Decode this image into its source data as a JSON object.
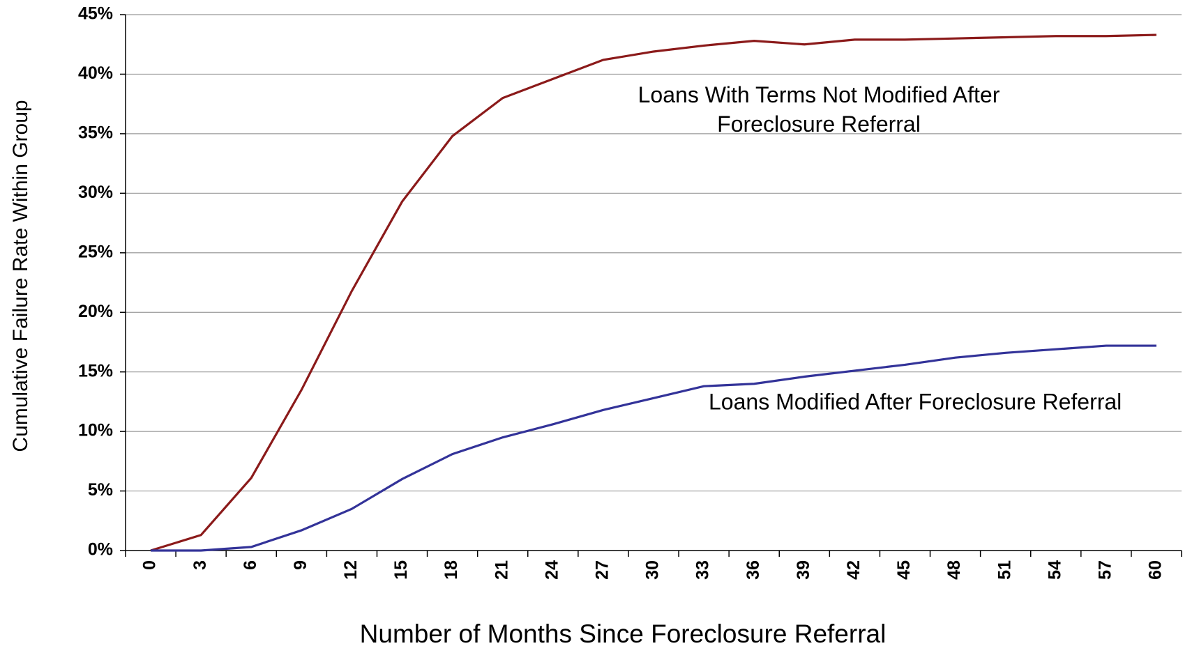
{
  "chart_data": {
    "type": "line",
    "xlabel": "Number of Months Since Foreclosure Referral",
    "ylabel": "Cumulative Failure Rate Within Group",
    "categories": [
      "0",
      "3",
      "6",
      "9",
      "12",
      "15",
      "18",
      "21",
      "24",
      "27",
      "30",
      "33",
      "36",
      "39",
      "42",
      "45",
      "48",
      "51",
      "54",
      "57",
      "60"
    ],
    "series": [
      {
        "name": "Loans With Terms Not Modified After Foreclosure Referral",
        "color": "#8b1a1a",
        "values": [
          0,
          1.3,
          6.1,
          13.5,
          21.8,
          29.3,
          34.8,
          38.0,
          39.6,
          41.2,
          41.9,
          42.4,
          42.8,
          42.5,
          42.9,
          42.9,
          43.0,
          43.1,
          43.2,
          43.2,
          43.3
        ]
      },
      {
        "name": "Loans Modified After Foreclosure Referral",
        "color": "#333399",
        "values": [
          0,
          0,
          0.3,
          1.7,
          3.5,
          6.0,
          8.1,
          9.5,
          10.6,
          11.8,
          12.8,
          13.8,
          14.0,
          14.6,
          15.1,
          15.6,
          16.2,
          16.6,
          16.9,
          17.2,
          17.2
        ]
      }
    ],
    "ylim": [
      0,
      45
    ],
    "yticks": [
      {
        "value": 0,
        "label": "0%"
      },
      {
        "value": 5,
        "label": "5%"
      },
      {
        "value": 10,
        "label": "10%"
      },
      {
        "value": 15,
        "label": "15%"
      },
      {
        "value": 20,
        "label": "20%"
      },
      {
        "value": 25,
        "label": "25%"
      },
      {
        "value": 30,
        "label": "30%"
      },
      {
        "value": 35,
        "label": "35%"
      },
      {
        "value": 40,
        "label": "40%"
      },
      {
        "value": 45,
        "label": "45%"
      }
    ],
    "grid": true
  }
}
